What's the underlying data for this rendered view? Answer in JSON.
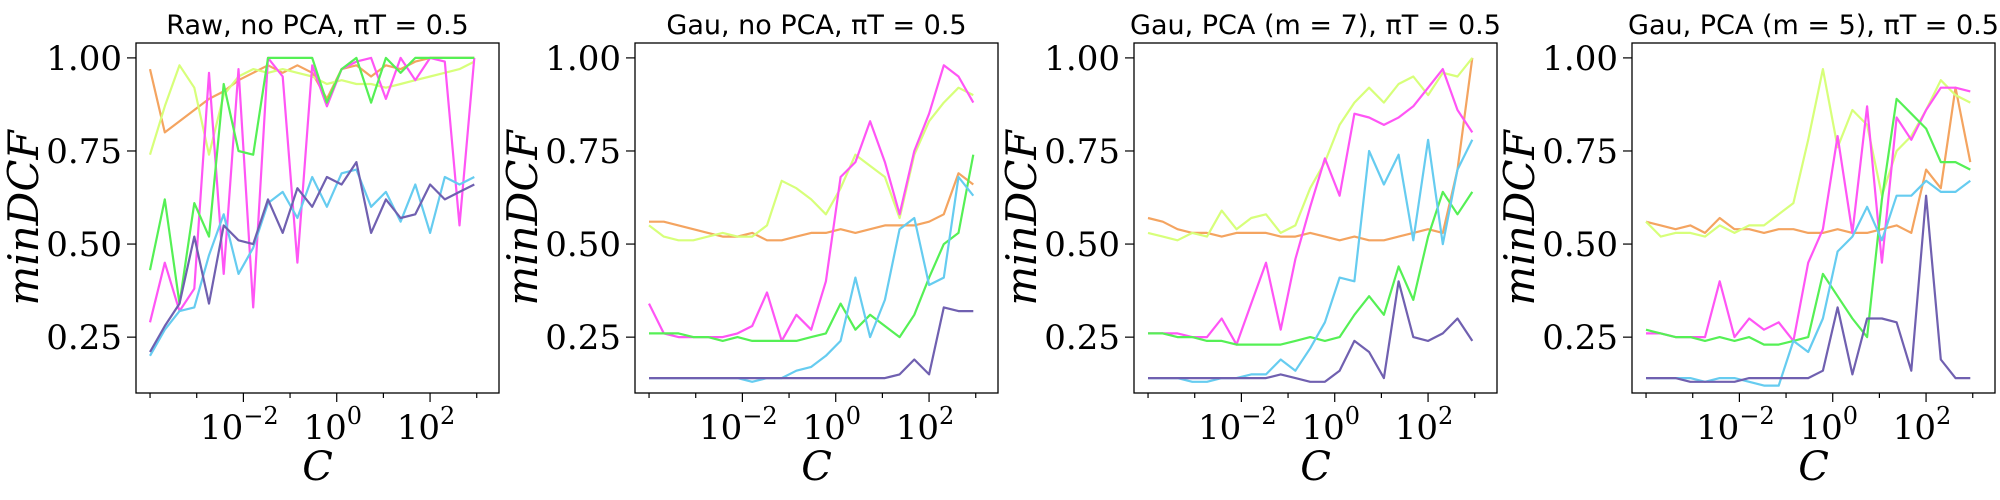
{
  "chart_data": [
    {
      "type": "line",
      "title": "Raw, no PCA, πT = 0.5",
      "xlabel": "C",
      "ylabel": "minDCF",
      "x_scale": "log",
      "xlim": [
        5e-05,
        3000
      ],
      "ylim": [
        0.1,
        1.04
      ],
      "x_ticks": [
        0.01,
        1,
        100
      ],
      "x_tick_labels": [
        [
          "10",
          "−2"
        ],
        [
          "10",
          "0"
        ],
        [
          "10",
          "2"
        ]
      ],
      "y_ticks": [
        0.25,
        0.5,
        0.75,
        1.0
      ],
      "y_tick_labels": [
        "0.25",
        "0.50",
        "0.75",
        "1.00"
      ],
      "grid": false,
      "x": [
        0.0001,
        0.000207,
        0.000428,
        0.000886,
        0.00183,
        0.00379,
        0.00785,
        0.0162,
        0.0336,
        0.0695,
        0.144,
        0.298,
        0.616,
        1.27,
        2.64,
        5.46,
        11.3,
        23.4,
        48.3,
        100,
        207,
        428,
        886
      ],
      "series": [
        {
          "color": "#f4a460",
          "values": [
            0.97,
            0.8,
            0.83,
            0.86,
            0.89,
            0.91,
            0.94,
            0.96,
            0.98,
            0.96,
            0.98,
            0.96,
            0.89,
            0.97,
            0.98,
            0.95,
            0.98,
            0.97,
            0.99,
            1.0,
            1.0,
            1.0,
            1.0
          ]
        },
        {
          "color": "#d7ff7a",
          "values": [
            0.74,
            0.87,
            0.98,
            0.92,
            0.74,
            0.9,
            0.95,
            0.97,
            0.96,
            0.97,
            0.96,
            0.95,
            0.93,
            0.94,
            0.93,
            0.93,
            0.92,
            0.93,
            0.94,
            0.95,
            0.96,
            0.97,
            0.99
          ]
        },
        {
          "color": "#ff55f5",
          "values": [
            0.29,
            0.45,
            0.32,
            0.38,
            0.96,
            0.42,
            0.97,
            0.33,
            1.0,
            0.95,
            0.45,
            0.98,
            0.87,
            0.97,
            0.99,
            1.0,
            0.89,
            1.0,
            0.94,
            1.0,
            0.99,
            0.55,
            1.0
          ]
        },
        {
          "color": "#55f055",
          "values": [
            0.43,
            0.62,
            0.34,
            0.61,
            0.52,
            0.93,
            0.75,
            0.74,
            1.0,
            1.0,
            1.0,
            1.0,
            0.88,
            0.97,
            1.0,
            0.88,
            1.0,
            0.96,
            1.0,
            1.0,
            1.0,
            1.0,
            1.0
          ]
        },
        {
          "color": "#66ccf0",
          "values": [
            0.2,
            0.27,
            0.32,
            0.33,
            0.47,
            0.58,
            0.42,
            0.49,
            0.61,
            0.64,
            0.57,
            0.68,
            0.6,
            0.69,
            0.7,
            0.6,
            0.64,
            0.56,
            0.66,
            0.53,
            0.68,
            0.66,
            0.68
          ]
        },
        {
          "color": "#7060b0",
          "values": [
            0.21,
            0.28,
            0.34,
            0.52,
            0.34,
            0.55,
            0.51,
            0.5,
            0.62,
            0.53,
            0.65,
            0.6,
            0.68,
            0.66,
            0.72,
            0.53,
            0.62,
            0.57,
            0.58,
            0.66,
            0.62,
            0.64,
            0.66
          ]
        }
      ]
    },
    {
      "type": "line",
      "title": "Gau, no PCA, πT = 0.5",
      "xlabel": "C",
      "ylabel": "minDCF",
      "x_scale": "log",
      "xlim": [
        5e-05,
        3000
      ],
      "ylim": [
        0.1,
        1.04
      ],
      "x_ticks": [
        0.01,
        1,
        100
      ],
      "x_tick_labels": [
        [
          "10",
          "−2"
        ],
        [
          "10",
          "0"
        ],
        [
          "10",
          "2"
        ]
      ],
      "y_ticks": [
        0.25,
        0.5,
        0.75,
        1.0
      ],
      "y_tick_labels": [
        "0.25",
        "0.50",
        "0.75",
        "1.00"
      ],
      "grid": false,
      "x": [
        0.0001,
        0.000207,
        0.000428,
        0.000886,
        0.00183,
        0.00379,
        0.00785,
        0.0162,
        0.0336,
        0.0695,
        0.144,
        0.298,
        0.616,
        1.27,
        2.64,
        5.46,
        11.3,
        23.4,
        48.3,
        100,
        207,
        428,
        886
      ],
      "series": [
        {
          "color": "#f4a460",
          "values": [
            0.56,
            0.56,
            0.55,
            0.54,
            0.53,
            0.52,
            0.52,
            0.53,
            0.51,
            0.51,
            0.52,
            0.53,
            0.53,
            0.54,
            0.53,
            0.54,
            0.55,
            0.55,
            0.55,
            0.56,
            0.58,
            0.69,
            0.66
          ]
        },
        {
          "color": "#d7ff7a",
          "values": [
            0.55,
            0.52,
            0.51,
            0.51,
            0.52,
            0.53,
            0.52,
            0.52,
            0.55,
            0.67,
            0.65,
            0.62,
            0.58,
            0.65,
            0.74,
            0.71,
            0.68,
            0.57,
            0.74,
            0.83,
            0.88,
            0.92,
            0.9
          ]
        },
        {
          "color": "#ff55f5",
          "values": [
            0.34,
            0.26,
            0.25,
            0.25,
            0.25,
            0.25,
            0.26,
            0.28,
            0.37,
            0.24,
            0.31,
            0.27,
            0.4,
            0.68,
            0.72,
            0.83,
            0.72,
            0.58,
            0.75,
            0.85,
            0.98,
            0.95,
            0.88
          ]
        },
        {
          "color": "#55f055",
          "values": [
            0.26,
            0.26,
            0.26,
            0.25,
            0.25,
            0.24,
            0.25,
            0.24,
            0.24,
            0.24,
            0.24,
            0.25,
            0.26,
            0.34,
            0.27,
            0.31,
            0.28,
            0.25,
            0.31,
            0.41,
            0.5,
            0.53,
            0.74
          ]
        },
        {
          "color": "#66ccf0",
          "values": [
            0.14,
            0.14,
            0.14,
            0.14,
            0.14,
            0.14,
            0.14,
            0.13,
            0.14,
            0.14,
            0.16,
            0.17,
            0.2,
            0.24,
            0.41,
            0.25,
            0.35,
            0.54,
            0.57,
            0.39,
            0.41,
            0.68,
            0.63
          ]
        },
        {
          "color": "#7060b0",
          "values": [
            0.14,
            0.14,
            0.14,
            0.14,
            0.14,
            0.14,
            0.14,
            0.14,
            0.14,
            0.14,
            0.14,
            0.14,
            0.14,
            0.14,
            0.14,
            0.14,
            0.14,
            0.15,
            0.19,
            0.15,
            0.33,
            0.32,
            0.32
          ]
        }
      ]
    },
    {
      "type": "line",
      "title": "Gau, PCA (m = 7), πT = 0.5",
      "xlabel": "C",
      "ylabel": "minDCF",
      "x_scale": "log",
      "xlim": [
        5e-05,
        3000
      ],
      "ylim": [
        0.1,
        1.04
      ],
      "x_ticks": [
        0.01,
        1,
        100
      ],
      "x_tick_labels": [
        [
          "10",
          "−2"
        ],
        [
          "10",
          "0"
        ],
        [
          "10",
          "2"
        ]
      ],
      "y_ticks": [
        0.25,
        0.5,
        0.75,
        1.0
      ],
      "y_tick_labels": [
        "0.25",
        "0.50",
        "0.75",
        "1.00"
      ],
      "grid": false,
      "x": [
        0.0001,
        0.000207,
        0.000428,
        0.000886,
        0.00183,
        0.00379,
        0.00785,
        0.0162,
        0.0336,
        0.0695,
        0.144,
        0.298,
        0.616,
        1.27,
        2.64,
        5.46,
        11.3,
        23.4,
        48.3,
        100,
        207,
        428,
        886
      ],
      "series": [
        {
          "color": "#f4a460",
          "values": [
            0.57,
            0.56,
            0.54,
            0.53,
            0.53,
            0.52,
            0.53,
            0.53,
            0.53,
            0.52,
            0.52,
            0.53,
            0.52,
            0.51,
            0.52,
            0.51,
            0.51,
            0.52,
            0.53,
            0.54,
            0.53,
            0.7,
            1.0
          ]
        },
        {
          "color": "#d7ff7a",
          "values": [
            0.53,
            0.52,
            0.51,
            0.53,
            0.52,
            0.59,
            0.54,
            0.57,
            0.58,
            0.53,
            0.55,
            0.65,
            0.72,
            0.82,
            0.88,
            0.92,
            0.88,
            0.93,
            0.95,
            0.9,
            0.96,
            0.95,
            1.0
          ]
        },
        {
          "color": "#ff55f5",
          "values": [
            0.26,
            0.26,
            0.26,
            0.25,
            0.25,
            0.3,
            0.23,
            0.34,
            0.45,
            0.27,
            0.46,
            0.6,
            0.73,
            0.63,
            0.85,
            0.84,
            0.82,
            0.84,
            0.87,
            0.92,
            0.97,
            0.86,
            0.8
          ]
        },
        {
          "color": "#55f055",
          "values": [
            0.26,
            0.26,
            0.25,
            0.25,
            0.24,
            0.24,
            0.23,
            0.23,
            0.23,
            0.23,
            0.24,
            0.25,
            0.24,
            0.25,
            0.31,
            0.36,
            0.31,
            0.44,
            0.35,
            0.52,
            0.64,
            0.58,
            0.64
          ]
        },
        {
          "color": "#66ccf0",
          "values": [
            0.14,
            0.14,
            0.14,
            0.13,
            0.13,
            0.14,
            0.14,
            0.15,
            0.15,
            0.19,
            0.16,
            0.22,
            0.29,
            0.41,
            0.4,
            0.75,
            0.66,
            0.74,
            0.51,
            0.78,
            0.5,
            0.7,
            0.78
          ]
        },
        {
          "color": "#7060b0",
          "values": [
            0.14,
            0.14,
            0.14,
            0.14,
            0.14,
            0.14,
            0.14,
            0.14,
            0.14,
            0.15,
            0.14,
            0.13,
            0.13,
            0.16,
            0.24,
            0.21,
            0.14,
            0.4,
            0.25,
            0.24,
            0.26,
            0.3,
            0.24
          ]
        }
      ]
    },
    {
      "type": "line",
      "title": "Gau, PCA (m = 5), πT = 0.5",
      "xlabel": "C",
      "ylabel": "minDCF",
      "x_scale": "log",
      "xlim": [
        5e-05,
        3000
      ],
      "ylim": [
        0.1,
        1.04
      ],
      "x_ticks": [
        0.01,
        1,
        100
      ],
      "x_tick_labels": [
        [
          "10",
          "−2"
        ],
        [
          "10",
          "0"
        ],
        [
          "10",
          "2"
        ]
      ],
      "y_ticks": [
        0.25,
        0.5,
        0.75,
        1.0
      ],
      "y_tick_labels": [
        "0.25",
        "0.50",
        "0.75",
        "1.00"
      ],
      "grid": false,
      "x": [
        0.0001,
        0.000207,
        0.000428,
        0.000886,
        0.00183,
        0.00379,
        0.00785,
        0.0162,
        0.0336,
        0.0695,
        0.144,
        0.298,
        0.616,
        1.27,
        2.64,
        5.46,
        11.3,
        23.4,
        48.3,
        100,
        207,
        428,
        886
      ],
      "series": [
        {
          "color": "#f4a460",
          "values": [
            0.56,
            0.55,
            0.54,
            0.55,
            0.53,
            0.57,
            0.54,
            0.54,
            0.53,
            0.54,
            0.54,
            0.53,
            0.53,
            0.54,
            0.53,
            0.53,
            0.54,
            0.55,
            0.53,
            0.7,
            0.65,
            0.92,
            0.72
          ]
        },
        {
          "color": "#d7ff7a",
          "values": [
            0.56,
            0.52,
            0.53,
            0.53,
            0.52,
            0.55,
            0.53,
            0.55,
            0.55,
            0.58,
            0.61,
            0.78,
            0.97,
            0.76,
            0.86,
            0.82,
            0.63,
            0.75,
            0.79,
            0.86,
            0.94,
            0.9,
            0.88
          ]
        },
        {
          "color": "#ff55f5",
          "values": [
            0.26,
            0.26,
            0.25,
            0.25,
            0.25,
            0.4,
            0.25,
            0.3,
            0.27,
            0.29,
            0.24,
            0.45,
            0.54,
            0.79,
            0.53,
            0.87,
            0.45,
            0.84,
            0.78,
            0.86,
            0.92,
            0.92,
            0.91
          ]
        },
        {
          "color": "#55f055",
          "values": [
            0.27,
            0.26,
            0.25,
            0.25,
            0.24,
            0.25,
            0.24,
            0.25,
            0.23,
            0.23,
            0.24,
            0.25,
            0.42,
            0.36,
            0.3,
            0.25,
            0.62,
            0.89,
            0.85,
            0.81,
            0.72,
            0.72,
            0.7
          ]
        },
        {
          "color": "#66ccf0",
          "values": [
            0.14,
            0.14,
            0.14,
            0.14,
            0.13,
            0.14,
            0.14,
            0.13,
            0.12,
            0.12,
            0.24,
            0.21,
            0.3,
            0.48,
            0.52,
            0.6,
            0.51,
            0.63,
            0.63,
            0.67,
            0.64,
            0.64,
            0.67
          ]
        },
        {
          "color": "#7060b0",
          "values": [
            0.14,
            0.14,
            0.14,
            0.13,
            0.13,
            0.13,
            0.13,
            0.14,
            0.14,
            0.14,
            0.14,
            0.14,
            0.16,
            0.33,
            0.15,
            0.3,
            0.3,
            0.29,
            0.16,
            0.63,
            0.19,
            0.14,
            0.14
          ]
        }
      ]
    }
  ]
}
